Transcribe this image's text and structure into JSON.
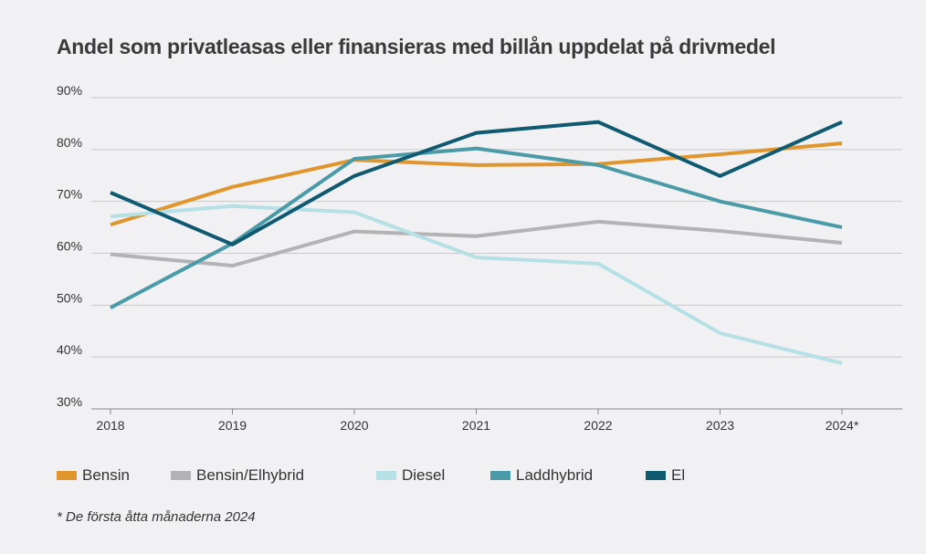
{
  "chart_data": {
    "type": "line",
    "title": "Andel som privatleasas eller finansieras med billån uppdelat på drivmedel",
    "categories": [
      "2018",
      "2019",
      "2020",
      "2021",
      "2022",
      "2023",
      "2024*"
    ],
    "ylim": [
      30,
      90
    ],
    "yticks": [
      "30%",
      "40%",
      "50%",
      "60%",
      "70%",
      "80%",
      "90%"
    ],
    "ytick_values": [
      30,
      40,
      50,
      60,
      70,
      80,
      90
    ],
    "grid": true,
    "legend_position": "bottom",
    "series": [
      {
        "name": "Bensin",
        "color": "#e0962c",
        "values": [
          65.5,
          72.8,
          78,
          77,
          77.2,
          79.1,
          81.2
        ]
      },
      {
        "name": "Bensin/Elhybrid",
        "color": "#b3b3b5",
        "values": [
          59.8,
          57.6,
          64.2,
          63.3,
          66.1,
          64.3,
          62
        ]
      },
      {
        "name": "Diesel",
        "color": "#b5e0e6",
        "values": [
          67.1,
          69.1,
          67.9,
          59.2,
          58,
          44.6,
          38.8
        ]
      },
      {
        "name": "Laddhybrid",
        "color": "#4a9aa8",
        "values": [
          49.5,
          61.9,
          78.2,
          80.2,
          77,
          70,
          65
        ]
      },
      {
        "name": "El",
        "color": "#0f5a70",
        "values": [
          71.7,
          61.7,
          74.9,
          83.2,
          85.3,
          74.9,
          85.3
        ]
      }
    ],
    "footnote": "* De första åtta månaderna 2024"
  }
}
